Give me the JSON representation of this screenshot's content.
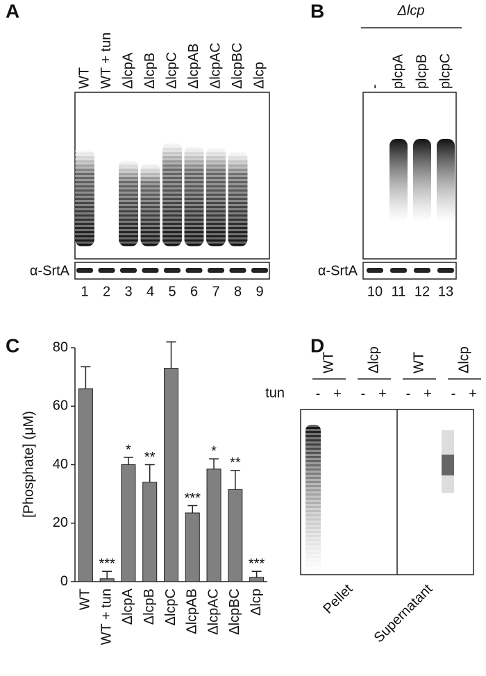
{
  "panels": {
    "A": {
      "letter": "A",
      "lanes": [
        "WT",
        "WT + tun",
        "ΔlcpA",
        "ΔlcpB",
        "ΔlcpC",
        "ΔlcpAB",
        "ΔlcpAC",
        "ΔlcpBC",
        "Δlcp"
      ],
      "blot": "α-SrtA",
      "numbers": [
        "1",
        "2",
        "3",
        "4",
        "5",
        "6",
        "7",
        "8",
        "9"
      ]
    },
    "B": {
      "letter": "B",
      "header": "Δlcp",
      "lanes": [
        "-",
        "plcpA",
        "plcpB",
        "plcpC"
      ],
      "blot": "α-SrtA",
      "numbers": [
        "10",
        "11",
        "12",
        "13"
      ]
    },
    "D": {
      "letter": "D",
      "groups": [
        "WT",
        "Δlcp",
        "WT",
        "Δlcp"
      ],
      "row_label": "tun",
      "signs": [
        "-",
        "+",
        "-",
        "+",
        "-",
        "+",
        "-",
        "+"
      ],
      "fractions": [
        "Pellet",
        "Supernatant"
      ]
    }
  },
  "chart_data": {
    "type": "bar",
    "letter": "C",
    "y_label": "[Phosphate] (μM)",
    "categories": [
      "WT",
      "WT + tun",
      "ΔlcpA",
      "ΔlcpB",
      "ΔlcpC",
      "ΔlcpAB",
      "ΔlcpAC",
      "ΔlcpBC",
      "Δlcp"
    ],
    "values": [
      66,
      1,
      40,
      34,
      73,
      23.5,
      38.5,
      31.5,
      1.5
    ],
    "errors": [
      7.5,
      2.5,
      2.5,
      6,
      9,
      2.5,
      3.5,
      6.5,
      2
    ],
    "annotations": [
      null,
      "***",
      "*",
      "**",
      null,
      "***",
      "*",
      "**",
      "***"
    ],
    "color": "#808080",
    "ylim": [
      0,
      85
    ],
    "yticks": [
      0,
      20,
      40,
      60,
      80
    ]
  }
}
